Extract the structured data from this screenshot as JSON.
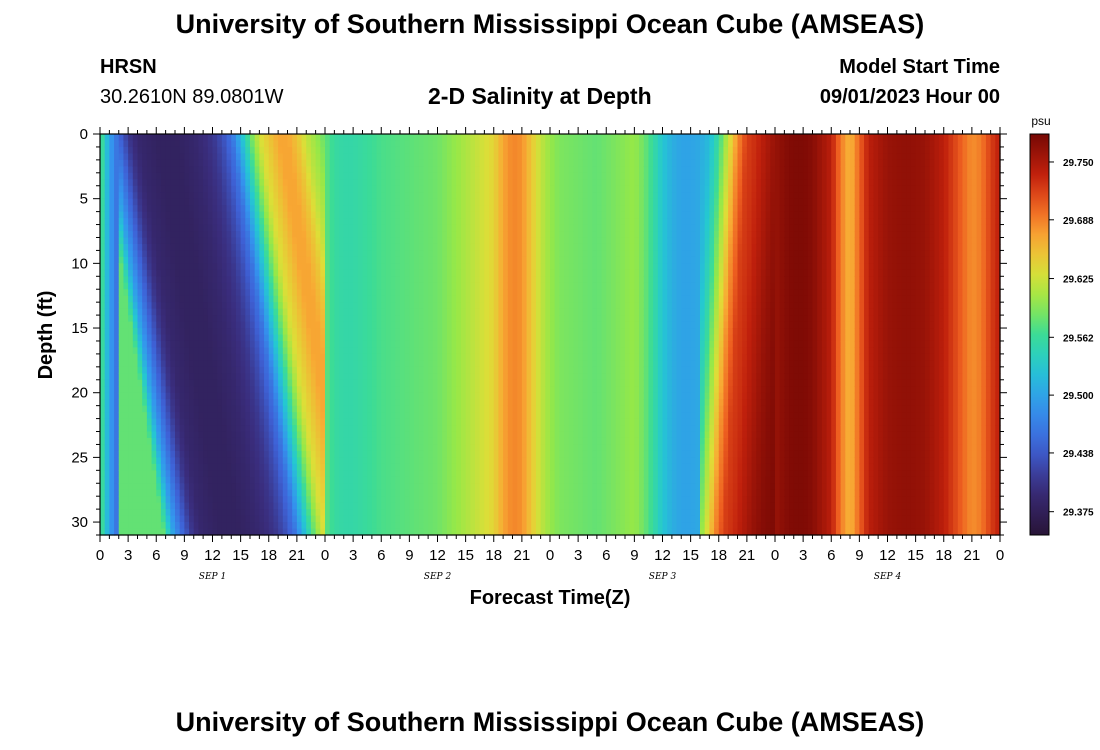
{
  "header": {
    "title": "University of Southern Mississippi Ocean Cube (AMSEAS)",
    "station_name": "HRSN",
    "station_coords": "30.2610N  89.0801W",
    "subtitle": "2-D Salinity at Depth",
    "start_label": "Model Start Time",
    "start_value": "09/01/2023 Hour 00"
  },
  "footer": {
    "title": "University of Southern Mississippi Ocean Cube (AMSEAS)"
  },
  "chart_data": {
    "type": "heatmap",
    "title": "2-D Salinity at Depth",
    "xlabel": "Forecast Time(Z)",
    "ylabel": "Depth (ft)",
    "x_range_hours": [
      0,
      96
    ],
    "y_range_ft": [
      0,
      31
    ],
    "y_ticks": [
      0,
      5,
      10,
      15,
      20,
      25,
      30
    ],
    "x_ticks": [
      {
        "h": 0,
        "label": "0"
      },
      {
        "h": 3,
        "label": "3"
      },
      {
        "h": 6,
        "label": "6"
      },
      {
        "h": 9,
        "label": "9"
      },
      {
        "h": 12,
        "label": "12"
      },
      {
        "h": 15,
        "label": "15"
      },
      {
        "h": 18,
        "label": "18"
      },
      {
        "h": 21,
        "label": "21"
      },
      {
        "h": 24,
        "label": "0"
      },
      {
        "h": 27,
        "label": "3"
      },
      {
        "h": 30,
        "label": "6"
      },
      {
        "h": 33,
        "label": "9"
      },
      {
        "h": 36,
        "label": "12"
      },
      {
        "h": 39,
        "label": "15"
      },
      {
        "h": 42,
        "label": "18"
      },
      {
        "h": 45,
        "label": "21"
      },
      {
        "h": 48,
        "label": "0"
      },
      {
        "h": 51,
        "label": "3"
      },
      {
        "h": 54,
        "label": "6"
      },
      {
        "h": 57,
        "label": "9"
      },
      {
        "h": 60,
        "label": "12"
      },
      {
        "h": 63,
        "label": "15"
      },
      {
        "h": 66,
        "label": "18"
      },
      {
        "h": 69,
        "label": "21"
      },
      {
        "h": 72,
        "label": "0"
      },
      {
        "h": 75,
        "label": "3"
      },
      {
        "h": 78,
        "label": "6"
      },
      {
        "h": 81,
        "label": "9"
      },
      {
        "h": 84,
        "label": "12"
      },
      {
        "h": 87,
        "label": "15"
      },
      {
        "h": 90,
        "label": "18"
      },
      {
        "h": 93,
        "label": "21"
      },
      {
        "h": 96,
        "label": "0"
      }
    ],
    "day_labels": [
      {
        "h": 12,
        "label": "SEP 1"
      },
      {
        "h": 36,
        "label": "SEP 2"
      },
      {
        "h": 60,
        "label": "SEP 3"
      },
      {
        "h": 84,
        "label": "SEP 4"
      }
    ],
    "colorbar": {
      "unit": "psu",
      "min": 29.35,
      "max": 29.78,
      "ticks": [
        "29.750",
        "29.688",
        "29.625",
        "29.562",
        "29.500",
        "29.438",
        "29.375"
      ]
    },
    "surface_salinity_by_hour": [
      [
        0,
        29.58
      ],
      [
        1,
        29.5
      ],
      [
        2,
        29.45
      ],
      [
        3,
        29.41
      ],
      [
        4,
        29.39
      ],
      [
        5,
        29.385
      ],
      [
        6,
        29.38
      ],
      [
        8,
        29.38
      ],
      [
        10,
        29.39
      ],
      [
        12,
        29.41
      ],
      [
        13,
        29.43
      ],
      [
        14,
        29.46
      ],
      [
        15,
        29.52
      ],
      [
        16,
        29.58
      ],
      [
        17,
        29.63
      ],
      [
        18,
        29.65
      ],
      [
        19,
        29.67
      ],
      [
        20,
        29.67
      ],
      [
        21,
        29.65
      ],
      [
        22,
        29.62
      ],
      [
        23,
        29.6
      ],
      [
        24,
        29.58
      ],
      [
        25,
        29.56
      ],
      [
        26,
        29.555
      ],
      [
        27,
        29.555
      ],
      [
        28,
        29.56
      ],
      [
        30,
        29.57
      ],
      [
        32,
        29.575
      ],
      [
        34,
        29.58
      ],
      [
        36,
        29.585
      ],
      [
        38,
        29.6
      ],
      [
        40,
        29.62
      ],
      [
        42,
        29.64
      ],
      [
        43,
        29.67
      ],
      [
        44,
        29.685
      ],
      [
        45,
        29.68
      ],
      [
        46,
        29.65
      ],
      [
        47,
        29.62
      ],
      [
        48,
        29.6
      ],
      [
        49,
        29.59
      ],
      [
        51,
        29.585
      ],
      [
        53,
        29.58
      ],
      [
        55,
        29.59
      ],
      [
        57,
        29.6
      ],
      [
        58,
        29.585
      ],
      [
        59,
        29.56
      ],
      [
        60,
        29.53
      ],
      [
        61,
        29.51
      ],
      [
        62,
        29.5
      ],
      [
        63,
        29.5
      ],
      [
        64,
        29.505
      ],
      [
        65,
        29.52
      ],
      [
        66,
        29.56
      ],
      [
        67,
        29.62
      ],
      [
        68,
        29.68
      ],
      [
        69,
        29.72
      ],
      [
        70,
        29.73
      ],
      [
        71,
        29.745
      ],
      [
        72,
        29.76
      ],
      [
        73,
        29.77
      ],
      [
        74,
        29.775
      ],
      [
        75,
        29.775
      ],
      [
        76,
        29.77
      ],
      [
        78,
        29.74
      ],
      [
        79,
        29.69
      ],
      [
        80,
        29.66
      ],
      [
        81,
        29.7
      ],
      [
        82,
        29.74
      ],
      [
        84,
        29.76
      ],
      [
        86,
        29.765
      ],
      [
        88,
        29.76
      ],
      [
        90,
        29.74
      ],
      [
        91,
        29.72
      ],
      [
        92,
        29.7
      ],
      [
        93,
        29.68
      ],
      [
        94,
        29.69
      ],
      [
        95,
        29.72
      ],
      [
        96,
        29.74
      ]
    ]
  }
}
